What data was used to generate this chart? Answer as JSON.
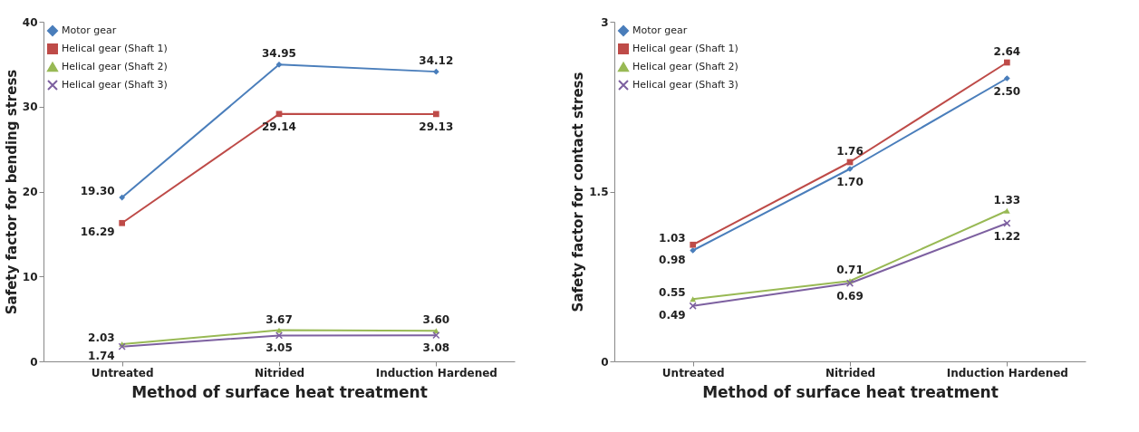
{
  "chart_data": [
    {
      "type": "line",
      "xlabel": "Method of surface heat treatment",
      "ylabel": "Safety factor for bending stress",
      "categories": [
        "Untreated",
        "Nitrided",
        "Induction Hardened"
      ],
      "ylim": [
        0,
        40
      ],
      "yticks": [
        0,
        10,
        20,
        30,
        40
      ],
      "grid": false,
      "legend": "top left",
      "series": [
        {
          "name": "Motor gear",
          "color": "#4a7ebb",
          "marker": "diamond",
          "values": [
            19.3,
            34.95,
            34.12
          ],
          "value_labels": [
            "19.30",
            "34.95",
            "34.12"
          ]
        },
        {
          "name": "Helical gear (Shaft 1)",
          "color": "#be4b48",
          "marker": "square",
          "values": [
            16.29,
            29.14,
            29.13
          ],
          "value_labels": [
            "16.29",
            "29.14",
            "29.13"
          ]
        },
        {
          "name": "Helical gear (Shaft 2)",
          "color": "#98b954",
          "marker": "triangle",
          "values": [
            2.03,
            3.67,
            3.6
          ],
          "value_labels": [
            "2.03",
            "3.67",
            "3.60"
          ]
        },
        {
          "name": "Helical gear (Shaft 3)",
          "color": "#7d60a0",
          "marker": "cross",
          "values": [
            1.74,
            3.05,
            3.08
          ],
          "value_labels": [
            "1.74",
            "3.05",
            "3.08"
          ]
        }
      ]
    },
    {
      "type": "line",
      "xlabel": "Method of surface heat treatment",
      "ylabel": "Safety factor for contact stress",
      "categories": [
        "Untreated",
        "Nitrided",
        "Induction Hardened"
      ],
      "ylim": [
        0,
        3
      ],
      "yticks": [
        0,
        1.5,
        3
      ],
      "grid": false,
      "legend": "top left",
      "series": [
        {
          "name": "Motor gear",
          "color": "#4a7ebb",
          "marker": "diamond",
          "values": [
            0.98,
            1.7,
            2.5
          ],
          "value_labels": [
            "0.98",
            "1.70",
            "2.50"
          ]
        },
        {
          "name": "Helical gear (Shaft 1)",
          "color": "#be4b48",
          "marker": "square",
          "values": [
            1.03,
            1.76,
            2.64
          ],
          "value_labels": [
            "1.03",
            "1.76",
            "2.64"
          ]
        },
        {
          "name": "Helical gear (Shaft 2)",
          "color": "#98b954",
          "marker": "triangle",
          "values": [
            0.55,
            0.71,
            1.33
          ],
          "value_labels": [
            "0.55",
            "0.71",
            "1.33"
          ]
        },
        {
          "name": "Helical gear (Shaft 3)",
          "color": "#7d60a0",
          "marker": "cross",
          "values": [
            0.49,
            0.69,
            1.22
          ],
          "value_labels": [
            "0.49",
            "0.69",
            "1.22"
          ]
        }
      ]
    }
  ]
}
